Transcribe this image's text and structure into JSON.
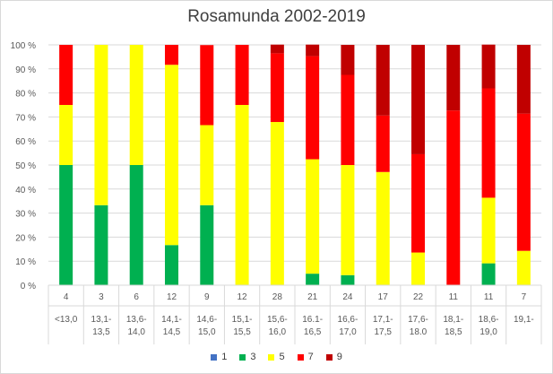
{
  "chart_data": {
    "type": "bar",
    "stacked": true,
    "percent": true,
    "title": "Rosamunda 2002-2019",
    "xlabel": "",
    "ylabel": "",
    "ylim": [
      0,
      100
    ],
    "yticks": [
      "0 %",
      "10 %",
      "20 %",
      "30 %",
      "40 %",
      "50 %",
      "60 %",
      "70 %",
      "80 %",
      "90 %",
      "100 %"
    ],
    "grid": true,
    "legend_position": "bottom",
    "categories": [
      {
        "count": "4",
        "range": [
          "<13,0"
        ]
      },
      {
        "count": "3",
        "range": [
          "13,1-",
          "13,5"
        ]
      },
      {
        "count": "6",
        "range": [
          "13,6-",
          "14,0"
        ]
      },
      {
        "count": "12",
        "range": [
          "14,1-",
          "14,5"
        ]
      },
      {
        "count": "9",
        "range": [
          "14,6-",
          "15,0"
        ]
      },
      {
        "count": "12",
        "range": [
          "15,1-",
          "15,5"
        ]
      },
      {
        "count": "28",
        "range": [
          "15,6-",
          "16,0"
        ]
      },
      {
        "count": "21",
        "range": [
          "16.1-",
          "16,5"
        ]
      },
      {
        "count": "24",
        "range": [
          "16,6-",
          "17,0"
        ]
      },
      {
        "count": "17",
        "range": [
          "17,1-",
          "17,5"
        ]
      },
      {
        "count": "22",
        "range": [
          "17,6-",
          "18.0"
        ]
      },
      {
        "count": "11",
        "range": [
          "18,1-",
          "18,5"
        ]
      },
      {
        "count": "11",
        "range": [
          "18,6-",
          "19,0"
        ]
      },
      {
        "count": "7",
        "range": [
          "19,1-"
        ]
      }
    ],
    "series": [
      {
        "name": "1",
        "color": "#4472c4",
        "values": [
          0,
          0,
          0,
          0,
          0,
          0,
          0,
          0,
          0,
          0,
          0,
          0,
          0,
          0
        ]
      },
      {
        "name": "3",
        "color": "#00b050",
        "values": [
          50,
          33.3,
          50,
          16.7,
          33.3,
          0,
          0,
          4.8,
          4.2,
          0,
          0,
          0,
          9.1,
          0
        ]
      },
      {
        "name": "5",
        "color": "#ffff00",
        "values": [
          25,
          66.7,
          50,
          75,
          33.3,
          75,
          67.9,
          47.6,
          45.8,
          47.1,
          13.6,
          0,
          27.3,
          14.3
        ]
      },
      {
        "name": "7",
        "color": "#ff0000",
        "values": [
          25,
          0,
          0,
          8.3,
          33.3,
          25,
          28.6,
          42.9,
          37.5,
          23.5,
          40.9,
          72.7,
          45.5,
          57.1
        ]
      },
      {
        "name": "9",
        "color": "#c00000",
        "values": [
          0,
          0,
          0,
          0,
          0,
          0,
          3.6,
          4.8,
          12.5,
          29.4,
          45.5,
          27.3,
          18.2,
          28.6
        ]
      }
    ]
  }
}
